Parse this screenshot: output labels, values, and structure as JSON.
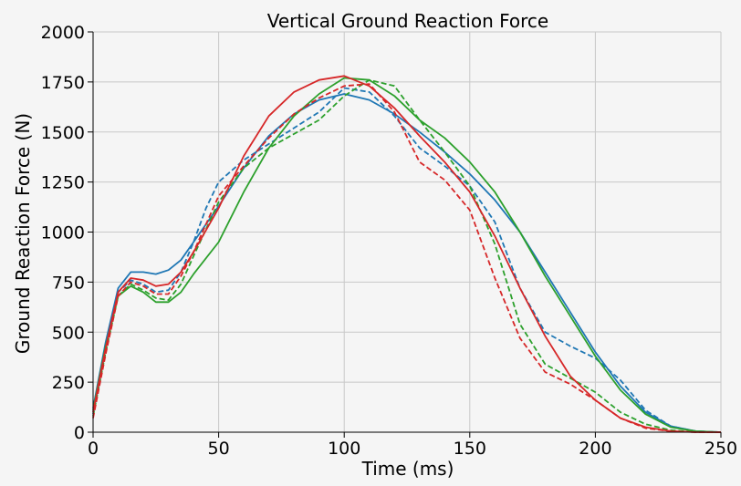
{
  "chart_data": {
    "type": "line",
    "title": "Vertical Ground Reaction Force",
    "xlabel": "Time (ms)",
    "ylabel": "Ground Reaction Force (N)",
    "xlim": [
      0,
      250
    ],
    "ylim": [
      0,
      2000
    ],
    "xticks": [
      0,
      50,
      100,
      150,
      200,
      250
    ],
    "yticks": [
      0,
      250,
      500,
      750,
      1000,
      1250,
      1500,
      1750,
      2000
    ],
    "xtick_labels": [
      "0",
      "50",
      "100",
      "150",
      "200",
      "250"
    ],
    "ytick_labels": [
      "0",
      "250",
      "500",
      "750",
      "1000",
      "1250",
      "1500",
      "1750",
      "2000"
    ],
    "grid": true,
    "legend": false,
    "series": [
      {
        "color": "#1f77b4",
        "style": "solid",
        "points": [
          [
            0,
            120
          ],
          [
            5,
            450
          ],
          [
            10,
            720
          ],
          [
            15,
            800
          ],
          [
            20,
            800
          ],
          [
            25,
            790
          ],
          [
            30,
            810
          ],
          [
            35,
            860
          ],
          [
            40,
            950
          ],
          [
            50,
            1130
          ],
          [
            60,
            1320
          ],
          [
            70,
            1480
          ],
          [
            80,
            1590
          ],
          [
            90,
            1660
          ],
          [
            100,
            1690
          ],
          [
            110,
            1660
          ],
          [
            120,
            1590
          ],
          [
            130,
            1500
          ],
          [
            140,
            1400
          ],
          [
            150,
            1290
          ],
          [
            160,
            1160
          ],
          [
            170,
            1000
          ],
          [
            180,
            800
          ],
          [
            190,
            600
          ],
          [
            200,
            400
          ],
          [
            210,
            230
          ],
          [
            220,
            100
          ],
          [
            230,
            30
          ],
          [
            240,
            5
          ],
          [
            250,
            0
          ]
        ]
      },
      {
        "color": "#1f77b4",
        "style": "dashed",
        "points": [
          [
            0,
            90
          ],
          [
            5,
            420
          ],
          [
            10,
            700
          ],
          [
            15,
            760
          ],
          [
            20,
            740
          ],
          [
            25,
            700
          ],
          [
            30,
            710
          ],
          [
            35,
            800
          ],
          [
            40,
            950
          ],
          [
            45,
            1120
          ],
          [
            50,
            1250
          ],
          [
            60,
            1360
          ],
          [
            70,
            1440
          ],
          [
            80,
            1520
          ],
          [
            90,
            1600
          ],
          [
            100,
            1720
          ],
          [
            110,
            1700
          ],
          [
            120,
            1580
          ],
          [
            130,
            1420
          ],
          [
            140,
            1330
          ],
          [
            150,
            1230
          ],
          [
            160,
            1050
          ],
          [
            170,
            720
          ],
          [
            180,
            500
          ],
          [
            190,
            430
          ],
          [
            200,
            370
          ],
          [
            210,
            260
          ],
          [
            220,
            110
          ],
          [
            230,
            30
          ],
          [
            240,
            5
          ],
          [
            250,
            0
          ]
        ]
      },
      {
        "color": "#2ca02c",
        "style": "solid",
        "points": [
          [
            0,
            110
          ],
          [
            5,
            430
          ],
          [
            10,
            680
          ],
          [
            15,
            730
          ],
          [
            20,
            700
          ],
          [
            25,
            650
          ],
          [
            30,
            650
          ],
          [
            35,
            700
          ],
          [
            40,
            790
          ],
          [
            50,
            950
          ],
          [
            60,
            1200
          ],
          [
            70,
            1420
          ],
          [
            80,
            1580
          ],
          [
            90,
            1690
          ],
          [
            100,
            1770
          ],
          [
            110,
            1760
          ],
          [
            120,
            1680
          ],
          [
            130,
            1560
          ],
          [
            140,
            1470
          ],
          [
            150,
            1350
          ],
          [
            160,
            1200
          ],
          [
            170,
            1000
          ],
          [
            180,
            780
          ],
          [
            190,
            580
          ],
          [
            200,
            380
          ],
          [
            210,
            210
          ],
          [
            220,
            90
          ],
          [
            230,
            25
          ],
          [
            240,
            5
          ],
          [
            250,
            0
          ]
        ]
      },
      {
        "color": "#2ca02c",
        "style": "dashed",
        "points": [
          [
            0,
            80
          ],
          [
            5,
            400
          ],
          [
            10,
            680
          ],
          [
            15,
            740
          ],
          [
            20,
            710
          ],
          [
            25,
            670
          ],
          [
            30,
            660
          ],
          [
            35,
            740
          ],
          [
            40,
            880
          ],
          [
            50,
            1150
          ],
          [
            60,
            1320
          ],
          [
            70,
            1420
          ],
          [
            80,
            1490
          ],
          [
            90,
            1560
          ],
          [
            100,
            1680
          ],
          [
            110,
            1760
          ],
          [
            120,
            1730
          ],
          [
            130,
            1560
          ],
          [
            140,
            1400
          ],
          [
            150,
            1230
          ],
          [
            160,
            940
          ],
          [
            170,
            540
          ],
          [
            180,
            340
          ],
          [
            190,
            270
          ],
          [
            200,
            200
          ],
          [
            210,
            100
          ],
          [
            220,
            40
          ],
          [
            230,
            10
          ],
          [
            240,
            2
          ],
          [
            250,
            0
          ]
        ]
      },
      {
        "color": "#d62728",
        "style": "solid",
        "points": [
          [
            0,
            100
          ],
          [
            5,
            420
          ],
          [
            10,
            700
          ],
          [
            15,
            770
          ],
          [
            20,
            760
          ],
          [
            25,
            730
          ],
          [
            30,
            740
          ],
          [
            35,
            800
          ],
          [
            40,
            900
          ],
          [
            50,
            1120
          ],
          [
            60,
            1380
          ],
          [
            70,
            1580
          ],
          [
            80,
            1700
          ],
          [
            90,
            1760
          ],
          [
            100,
            1780
          ],
          [
            110,
            1730
          ],
          [
            120,
            1620
          ],
          [
            130,
            1480
          ],
          [
            140,
            1350
          ],
          [
            150,
            1200
          ],
          [
            160,
            980
          ],
          [
            170,
            720
          ],
          [
            180,
            480
          ],
          [
            190,
            280
          ],
          [
            200,
            160
          ],
          [
            210,
            70
          ],
          [
            220,
            25
          ],
          [
            230,
            5
          ],
          [
            240,
            0
          ],
          [
            250,
            0
          ]
        ]
      },
      {
        "color": "#d62728",
        "style": "dashed",
        "points": [
          [
            0,
            70
          ],
          [
            5,
            390
          ],
          [
            10,
            680
          ],
          [
            15,
            750
          ],
          [
            20,
            730
          ],
          [
            25,
            690
          ],
          [
            30,
            690
          ],
          [
            35,
            780
          ],
          [
            40,
            900
          ],
          [
            50,
            1180
          ],
          [
            60,
            1330
          ],
          [
            70,
            1470
          ],
          [
            80,
            1590
          ],
          [
            90,
            1670
          ],
          [
            100,
            1730
          ],
          [
            110,
            1740
          ],
          [
            120,
            1600
          ],
          [
            130,
            1350
          ],
          [
            140,
            1260
          ],
          [
            150,
            1110
          ],
          [
            160,
            770
          ],
          [
            170,
            470
          ],
          [
            180,
            300
          ],
          [
            190,
            240
          ],
          [
            200,
            160
          ],
          [
            210,
            70
          ],
          [
            220,
            20
          ],
          [
            230,
            5
          ],
          [
            240,
            0
          ],
          [
            250,
            0
          ]
        ]
      }
    ]
  }
}
